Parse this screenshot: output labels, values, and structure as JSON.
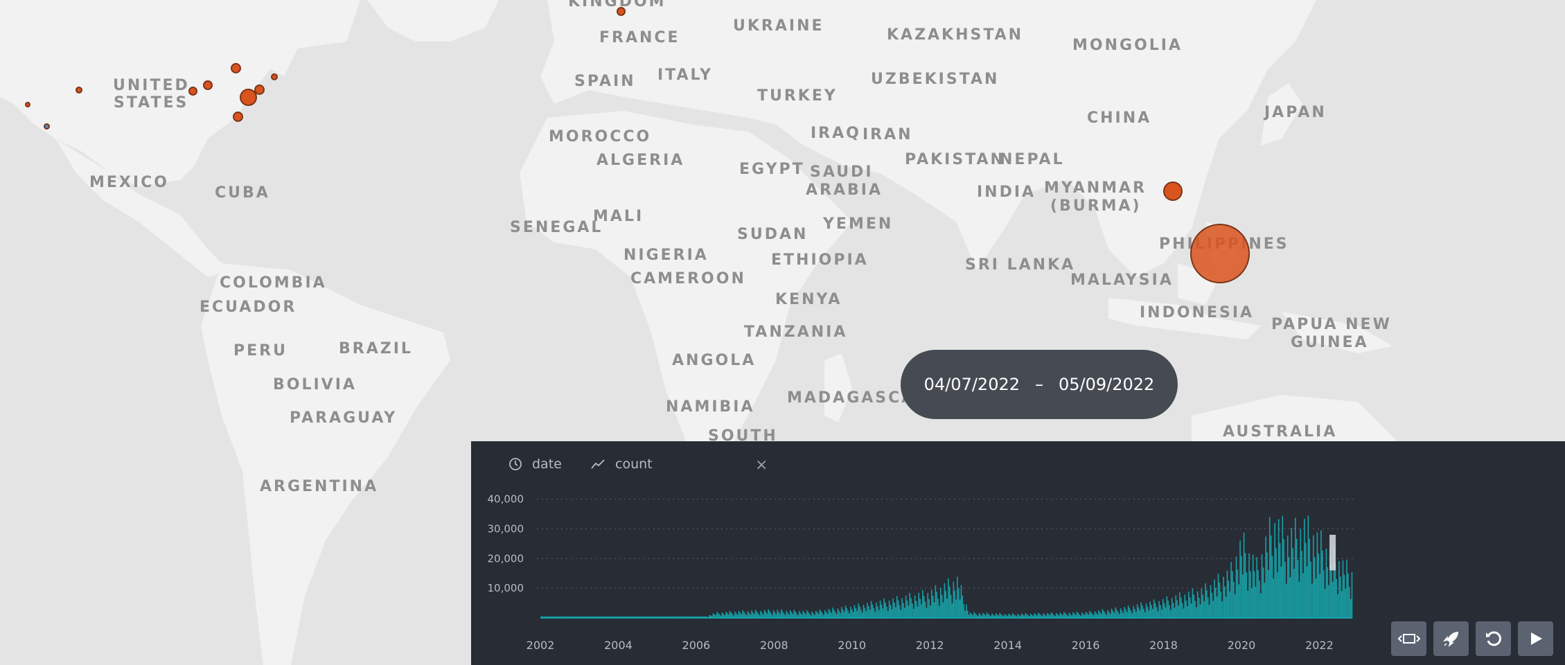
{
  "map": {
    "labels": [
      {
        "id": "kingdom",
        "text": "KINGDOM"
      },
      {
        "id": "ukraine",
        "text": "UKRAINE"
      },
      {
        "id": "kazakhstan",
        "text": "KAZAKHSTAN"
      },
      {
        "id": "mongolia",
        "text": "MONGOLIA"
      },
      {
        "id": "france",
        "text": "FRANCE"
      },
      {
        "id": "united-states-1",
        "text": "UNITED"
      },
      {
        "id": "united-states-2",
        "text": "STATES"
      },
      {
        "id": "spain",
        "text": "SPAIN"
      },
      {
        "id": "italy",
        "text": "ITALY"
      },
      {
        "id": "uzbekistan",
        "text": "UZBEKISTAN"
      },
      {
        "id": "turkey",
        "text": "TURKEY"
      },
      {
        "id": "japan",
        "text": "JAPAN"
      },
      {
        "id": "china",
        "text": "CHINA"
      },
      {
        "id": "morocco",
        "text": "MOROCCO"
      },
      {
        "id": "iraq",
        "text": "IRAQ"
      },
      {
        "id": "iran",
        "text": "IRAN"
      },
      {
        "id": "algeria",
        "text": "ALGERIA"
      },
      {
        "id": "pakistan",
        "text": "PAKISTAN"
      },
      {
        "id": "nepal",
        "text": "NEPAL"
      },
      {
        "id": "egypt",
        "text": "EGYPT"
      },
      {
        "id": "saudi-1",
        "text": "SAUDI"
      },
      {
        "id": "saudi-2",
        "text": "ARABIA"
      },
      {
        "id": "mexico",
        "text": "MEXICO"
      },
      {
        "id": "cuba",
        "text": "CUBA"
      },
      {
        "id": "india",
        "text": "INDIA"
      },
      {
        "id": "myanmar-1",
        "text": "MYANMAR"
      },
      {
        "id": "myanmar-2",
        "text": "(BURMA)"
      },
      {
        "id": "mali",
        "text": "MALI"
      },
      {
        "id": "senegal",
        "text": "SENEGAL"
      },
      {
        "id": "yemen",
        "text": "YEMEN"
      },
      {
        "id": "sudan",
        "text": "SUDAN"
      },
      {
        "id": "philippines",
        "text": "PHILIPPINES"
      },
      {
        "id": "nigeria",
        "text": "NIGERIA"
      },
      {
        "id": "ethiopia",
        "text": "ETHIOPIA"
      },
      {
        "id": "sri-lanka",
        "text": "SRI LANKA"
      },
      {
        "id": "colombia",
        "text": "COLOMBIA"
      },
      {
        "id": "cameroon",
        "text": "CAMEROON"
      },
      {
        "id": "malaysia",
        "text": "MALAYSIA"
      },
      {
        "id": "kenya",
        "text": "KENYA"
      },
      {
        "id": "ecuador",
        "text": "ECUADOR"
      },
      {
        "id": "indonesia",
        "text": "INDONESIA"
      },
      {
        "id": "papua-1",
        "text": "PAPUA NEW"
      },
      {
        "id": "papua-2",
        "text": "GUINEA"
      },
      {
        "id": "tanzania",
        "text": "TANZANIA"
      },
      {
        "id": "peru",
        "text": "PERU"
      },
      {
        "id": "brazil",
        "text": "BRAZIL"
      },
      {
        "id": "angola",
        "text": "ANGOLA"
      },
      {
        "id": "bolivia",
        "text": "BOLIVIA"
      },
      {
        "id": "madagascar",
        "text": "MADAGASCAR"
      },
      {
        "id": "namibia",
        "text": "NAMIBIA"
      },
      {
        "id": "paraguay",
        "text": "PARAGUAY"
      },
      {
        "id": "south",
        "text": "SOUTH"
      },
      {
        "id": "australia",
        "text": "AUSTRALIA"
      },
      {
        "id": "argentina",
        "text": "ARGENTINA"
      }
    ]
  },
  "date_range": {
    "start": "04/07/2022",
    "separator": "–",
    "end": "05/09/2022"
  },
  "panel": {
    "tabs": [
      {
        "label": "date",
        "icon": "clock-icon"
      },
      {
        "label": "count",
        "icon": "trend-line-icon"
      }
    ],
    "close_label": "×"
  },
  "chart_data": {
    "type": "bar",
    "xlabel": "",
    "ylabel": "",
    "y_ticks": [
      "10,000",
      "20,000",
      "30,000",
      "40,000"
    ],
    "x_ticks": [
      "2002",
      "2004",
      "2006",
      "2008",
      "2010",
      "2012",
      "2014",
      "2016",
      "2018",
      "2020",
      "2022"
    ],
    "ylim": [
      0,
      42000
    ],
    "xlim": [
      2002,
      2022.9
    ],
    "color": "#17a2a7",
    "grid": true,
    "anchors": [
      [
        2002.0,
        500
      ],
      [
        2006.2,
        500
      ],
      [
        2006.5,
        2000
      ],
      [
        2007.0,
        2500
      ],
      [
        2008.0,
        3000
      ],
      [
        2009.0,
        2500
      ],
      [
        2010.0,
        4500
      ],
      [
        2011.0,
        7000
      ],
      [
        2012.0,
        10000
      ],
      [
        2012.7,
        15000
      ],
      [
        2013.0,
        2000
      ],
      [
        2014.0,
        1500
      ],
      [
        2015.0,
        1800
      ],
      [
        2016.0,
        2200
      ],
      [
        2017.0,
        4000
      ],
      [
        2018.0,
        7000
      ],
      [
        2019.0,
        11000
      ],
      [
        2019.7,
        18000
      ],
      [
        2020.0,
        30000
      ],
      [
        2020.4,
        20000
      ],
      [
        2020.8,
        38000
      ],
      [
        2021.2,
        32000
      ],
      [
        2021.6,
        36000
      ],
      [
        2022.0,
        30000
      ],
      [
        2022.3,
        25000
      ],
      [
        2022.8,
        18000
      ]
    ],
    "selection": {
      "from": "2022-04-07",
      "to": "2022-05-09"
    }
  },
  "controls": [
    {
      "id": "fit-view",
      "icon": "fit-view-icon"
    },
    {
      "id": "fly",
      "icon": "rocket-icon"
    },
    {
      "id": "reset",
      "icon": "reset-icon"
    },
    {
      "id": "play",
      "icon": "play-icon"
    }
  ],
  "colors": {
    "ocean": "#e4e4e4",
    "land": "#f2f2f2",
    "marker": "#d9541e",
    "panel": "#272c35",
    "bar": "#17a2a7"
  }
}
